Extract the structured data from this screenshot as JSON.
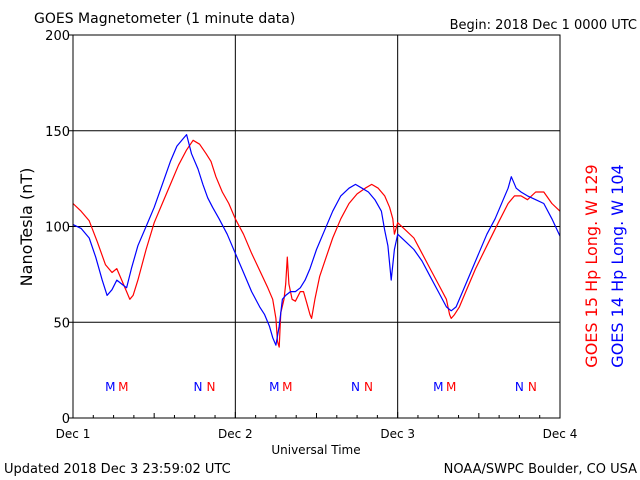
{
  "header": {
    "title": "GOES Magnetometer (1 minute data)",
    "begin_label": "Begin:  2018 Dec 1 0000 UTC"
  },
  "footer": {
    "updated": "Updated 2018 Dec  3 23:59:02 UTC",
    "credit": "NOAA/SWPC Boulder, CO USA"
  },
  "colors": {
    "goes15": "#ff0000",
    "goes14": "#0000ff",
    "axis": "#000000"
  },
  "chart_data": {
    "type": "line",
    "title": "GOES Magnetometer (1 minute data)",
    "xlabel": "Universal Time",
    "ylabel": "NanoTesla (nT)",
    "ylim": [
      0,
      200
    ],
    "xlim": [
      0,
      3
    ],
    "grid": true,
    "legend_position": "right-vertical",
    "y_ticks": [
      0,
      50,
      100,
      150,
      200
    ],
    "x_ticks": [
      {
        "value": 0,
        "label": "Dec 1"
      },
      {
        "value": 1,
        "label": "Dec 2"
      },
      {
        "value": 2,
        "label": "Dec 3"
      },
      {
        "value": 3,
        "label": "Dec 4"
      }
    ],
    "markers": [
      {
        "x": 0.23,
        "label": "M",
        "color": "#0000ff"
      },
      {
        "x": 0.31,
        "label": "M",
        "color": "#ff0000"
      },
      {
        "x": 0.77,
        "label": "N",
        "color": "#0000ff"
      },
      {
        "x": 0.85,
        "label": "N",
        "color": "#ff0000"
      },
      {
        "x": 1.24,
        "label": "M",
        "color": "#0000ff"
      },
      {
        "x": 1.32,
        "label": "M",
        "color": "#ff0000"
      },
      {
        "x": 1.74,
        "label": "N",
        "color": "#0000ff"
      },
      {
        "x": 1.82,
        "label": "N",
        "color": "#ff0000"
      },
      {
        "x": 2.25,
        "label": "M",
        "color": "#0000ff"
      },
      {
        "x": 2.33,
        "label": "M",
        "color": "#ff0000"
      },
      {
        "x": 2.75,
        "label": "N",
        "color": "#0000ff"
      },
      {
        "x": 2.83,
        "label": "N",
        "color": "#ff0000"
      }
    ],
    "series": [
      {
        "name": "GOES 15 Hp  Long. W 129",
        "color": "#ff0000",
        "points": [
          [
            0.0,
            112
          ],
          [
            0.05,
            108
          ],
          [
            0.1,
            103
          ],
          [
            0.15,
            92
          ],
          [
            0.2,
            80
          ],
          [
            0.24,
            76
          ],
          [
            0.27,
            78
          ],
          [
            0.3,
            72
          ],
          [
            0.33,
            66
          ],
          [
            0.35,
            62
          ],
          [
            0.37,
            64
          ],
          [
            0.4,
            72
          ],
          [
            0.45,
            88
          ],
          [
            0.5,
            102
          ],
          [
            0.55,
            112
          ],
          [
            0.6,
            122
          ],
          [
            0.65,
            132
          ],
          [
            0.7,
            140
          ],
          [
            0.74,
            145
          ],
          [
            0.78,
            143
          ],
          [
            0.82,
            138
          ],
          [
            0.85,
            134
          ],
          [
            0.88,
            126
          ],
          [
            0.92,
            118
          ],
          [
            0.96,
            112
          ],
          [
            1.0,
            104
          ],
          [
            1.05,
            96
          ],
          [
            1.1,
            86
          ],
          [
            1.15,
            77
          ],
          [
            1.2,
            68
          ],
          [
            1.23,
            62
          ],
          [
            1.25,
            52
          ],
          [
            1.26,
            40
          ],
          [
            1.27,
            37
          ],
          [
            1.28,
            55
          ],
          [
            1.3,
            62
          ],
          [
            1.31,
            70
          ],
          [
            1.32,
            84
          ],
          [
            1.33,
            70
          ],
          [
            1.35,
            62
          ],
          [
            1.37,
            61
          ],
          [
            1.4,
            66
          ],
          [
            1.42,
            66
          ],
          [
            1.44,
            60
          ],
          [
            1.46,
            54
          ],
          [
            1.47,
            52
          ],
          [
            1.49,
            62
          ],
          [
            1.52,
            74
          ],
          [
            1.56,
            84
          ],
          [
            1.6,
            94
          ],
          [
            1.65,
            104
          ],
          [
            1.7,
            112
          ],
          [
            1.75,
            117
          ],
          [
            1.8,
            120
          ],
          [
            1.84,
            122
          ],
          [
            1.88,
            120
          ],
          [
            1.92,
            116
          ],
          [
            1.95,
            110
          ],
          [
            1.97,
            104
          ],
          [
            1.98,
            96
          ],
          [
            2.0,
            102
          ],
          [
            2.05,
            98
          ],
          [
            2.1,
            94
          ],
          [
            2.15,
            86
          ],
          [
            2.2,
            78
          ],
          [
            2.25,
            70
          ],
          [
            2.3,
            62
          ],
          [
            2.32,
            54
          ],
          [
            2.33,
            52
          ],
          [
            2.35,
            54
          ],
          [
            2.38,
            58
          ],
          [
            2.42,
            66
          ],
          [
            2.48,
            78
          ],
          [
            2.55,
            90
          ],
          [
            2.62,
            102
          ],
          [
            2.68,
            112
          ],
          [
            2.72,
            116
          ],
          [
            2.76,
            116
          ],
          [
            2.8,
            114
          ],
          [
            2.85,
            118
          ],
          [
            2.9,
            118
          ],
          [
            2.95,
            112
          ],
          [
            3.0,
            108
          ]
        ]
      },
      {
        "name": "GOES 14 Hp  Long. W 104",
        "color": "#0000ff",
        "points": [
          [
            0.0,
            101
          ],
          [
            0.05,
            99
          ],
          [
            0.1,
            94
          ],
          [
            0.14,
            84
          ],
          [
            0.18,
            72
          ],
          [
            0.21,
            64
          ],
          [
            0.24,
            67
          ],
          [
            0.27,
            72
          ],
          [
            0.3,
            70
          ],
          [
            0.33,
            68
          ],
          [
            0.36,
            78
          ],
          [
            0.4,
            90
          ],
          [
            0.45,
            100
          ],
          [
            0.5,
            110
          ],
          [
            0.55,
            122
          ],
          [
            0.6,
            134
          ],
          [
            0.64,
            142
          ],
          [
            0.68,
            146
          ],
          [
            0.7,
            148
          ],
          [
            0.73,
            138
          ],
          [
            0.77,
            130
          ],
          [
            0.8,
            122
          ],
          [
            0.83,
            115
          ],
          [
            0.86,
            110
          ],
          [
            0.9,
            104
          ],
          [
            0.95,
            96
          ],
          [
            1.0,
            86
          ],
          [
            1.05,
            76
          ],
          [
            1.1,
            66
          ],
          [
            1.15,
            58
          ],
          [
            1.18,
            54
          ],
          [
            1.21,
            48
          ],
          [
            1.23,
            42
          ],
          [
            1.25,
            38
          ],
          [
            1.27,
            48
          ],
          [
            1.29,
            62
          ],
          [
            1.31,
            64
          ],
          [
            1.34,
            66
          ],
          [
            1.37,
            66
          ],
          [
            1.4,
            68
          ],
          [
            1.43,
            72
          ],
          [
            1.46,
            78
          ],
          [
            1.5,
            88
          ],
          [
            1.55,
            98
          ],
          [
            1.6,
            108
          ],
          [
            1.65,
            116
          ],
          [
            1.7,
            120
          ],
          [
            1.74,
            122
          ],
          [
            1.78,
            120
          ],
          [
            1.82,
            118
          ],
          [
            1.86,
            114
          ],
          [
            1.9,
            108
          ],
          [
            1.92,
            98
          ],
          [
            1.94,
            90
          ],
          [
            1.96,
            72
          ],
          [
            1.98,
            88
          ],
          [
            2.0,
            96
          ],
          [
            2.05,
            92
          ],
          [
            2.1,
            88
          ],
          [
            2.15,
            82
          ],
          [
            2.2,
            74
          ],
          [
            2.25,
            66
          ],
          [
            2.3,
            58
          ],
          [
            2.33,
            56
          ],
          [
            2.36,
            58
          ],
          [
            2.4,
            66
          ],
          [
            2.45,
            76
          ],
          [
            2.5,
            86
          ],
          [
            2.55,
            96
          ],
          [
            2.6,
            104
          ],
          [
            2.65,
            114
          ],
          [
            2.68,
            120
          ],
          [
            2.7,
            126
          ],
          [
            2.73,
            120
          ],
          [
            2.76,
            118
          ],
          [
            2.8,
            116
          ],
          [
            2.85,
            114
          ],
          [
            2.9,
            112
          ],
          [
            2.95,
            104
          ],
          [
            3.0,
            95
          ]
        ]
      }
    ]
  }
}
